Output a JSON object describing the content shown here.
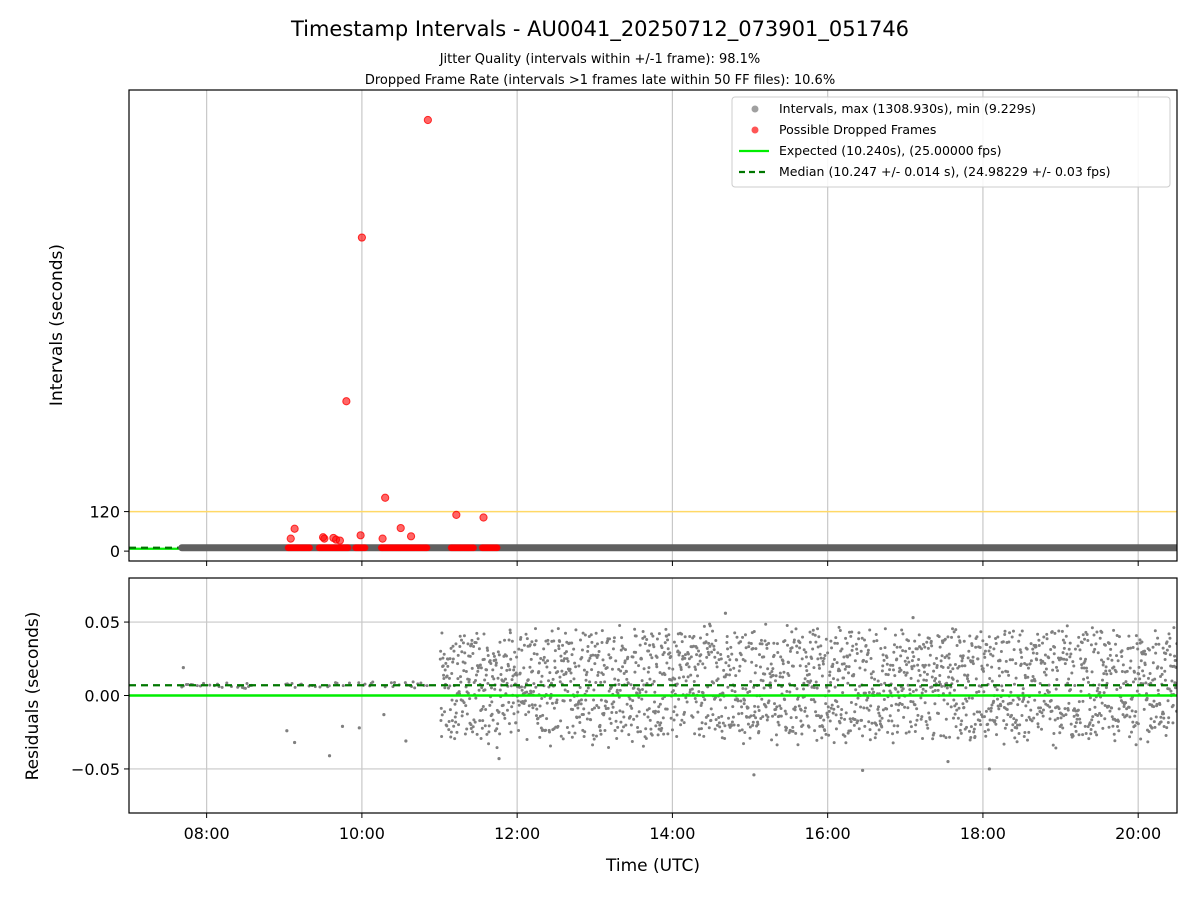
{
  "title": "Timestamp Intervals - AU0041_20250712_073901_051746",
  "subtitle_lines": [
    "Jitter Quality (intervals within +/-1 frame): 98.1%",
    "Dropped Frame Rate (intervals >1 frames late within 50 FF files): 10.6%"
  ],
  "colors": {
    "intervals": "#808080",
    "dropped": "#ff0000",
    "expected": "#00ee00",
    "median": "#007700",
    "threshold": "#ffd966",
    "grid": "#c8c8c8"
  },
  "chart_data": [
    {
      "type": "scatter",
      "name": "intervals-panel",
      "ylabel": "Intervals (seconds)",
      "xlim_hours": [
        7.0,
        20.5
      ],
      "ylim": [
        -30,
        1400
      ],
      "y_ticks": [
        {
          "value": 0,
          "label": "0"
        },
        {
          "value": 120,
          "label": "120"
        }
      ],
      "x_grid_hours": [
        8,
        10,
        12,
        14,
        16,
        18,
        20
      ],
      "grid": true,
      "legend_position": "upper-right",
      "legend": [
        {
          "kind": "dot",
          "color": "#a0a0a0",
          "label": "Intervals, max (1308.930s), min (9.229s)"
        },
        {
          "kind": "dot",
          "color": "#ff5555",
          "label": "Possible Dropped Frames"
        },
        {
          "kind": "line",
          "color": "#00ee00",
          "label": "Expected (10.240s), (25.00000 fps)"
        },
        {
          "kind": "dash",
          "color": "#007700",
          "label": "Median (10.247 +/- 0.014 s), (24.98229 +/- 0.03 fps)"
        }
      ],
      "reference_lines": {
        "expected": 10.24,
        "median": 10.247,
        "threshold": 120
      },
      "series": [
        {
          "name": "Intervals",
          "note": "continuous band of intervals near the expected value",
          "x_range_hours": [
            7.68,
            20.5
          ],
          "y": 10.25
        },
        {
          "name": "Possible Dropped Frames",
          "points": [
            {
              "x": "09:05",
              "y": 38
            },
            {
              "x": "09:08",
              "y": 68
            },
            {
              "x": "09:30",
              "y": 42
            },
            {
              "x": "09:31",
              "y": 38
            },
            {
              "x": "09:38",
              "y": 40
            },
            {
              "x": "09:40",
              "y": 35
            },
            {
              "x": "09:43",
              "y": 32
            },
            {
              "x": "09:48",
              "y": 455
            },
            {
              "x": "09:59",
              "y": 48
            },
            {
              "x": "10:00",
              "y": 952
            },
            {
              "x": "10:16",
              "y": 38
            },
            {
              "x": "10:18",
              "y": 162
            },
            {
              "x": "10:30",
              "y": 70
            },
            {
              "x": "10:38",
              "y": 45
            },
            {
              "x": "10:51",
              "y": 1308.93
            },
            {
              "x": "11:13",
              "y": 110
            },
            {
              "x": "11:34",
              "y": 102
            }
          ],
          "clusters_near_expected_hours": [
            [
              9.05,
              9.33
            ],
            [
              9.45,
              9.83
            ],
            [
              9.92,
              10.05
            ],
            [
              10.25,
              10.85
            ],
            [
              11.15,
              11.45
            ],
            [
              11.55,
              11.75
            ]
          ]
        }
      ]
    },
    {
      "type": "scatter",
      "name": "residuals-panel",
      "xlabel": "Time (UTC)",
      "ylabel": "Residuals (seconds)",
      "xlim_hours": [
        7.0,
        20.5
      ],
      "ylim": [
        -0.08,
        0.08
      ],
      "x_ticks": [
        "08:00",
        "10:00",
        "12:00",
        "14:00",
        "16:00",
        "18:00",
        "20:00"
      ],
      "y_ticks": [
        {
          "value": 0.05,
          "label": "0.05"
        },
        {
          "value": 0.0,
          "label": "0.00"
        },
        {
          "value": -0.05,
          "label": "−0.05"
        }
      ],
      "grid": true,
      "reference_lines": {
        "expected": 0.0,
        "median": 0.007
      },
      "series": [
        {
          "name": "Residuals",
          "note": "sparse points before 11:00 near +0.007 s; dense scatter from 11:00 to 20:30 spanning roughly -0.045 to +0.05 s",
          "early_range_hours": [
            7.68,
            10.85
          ],
          "early_center": 0.007,
          "dense_range_hours": [
            11.0,
            20.5
          ],
          "dense_center": 0.007,
          "dense_spread": 0.045,
          "outliers": [
            {
              "x": "07:42",
              "y": 0.019
            },
            {
              "x": "09:02",
              "y": -0.024
            },
            {
              "x": "09:08",
              "y": -0.032
            },
            {
              "x": "09:35",
              "y": -0.041
            },
            {
              "x": "09:45",
              "y": -0.021
            },
            {
              "x": "09:58",
              "y": -0.022
            },
            {
              "x": "10:17",
              "y": -0.013
            },
            {
              "x": "10:34",
              "y": -0.031
            },
            {
              "x": "11:46",
              "y": -0.043
            },
            {
              "x": "15:03",
              "y": -0.054
            },
            {
              "x": "16:27",
              "y": -0.051
            },
            {
              "x": "17:33",
              "y": -0.045
            },
            {
              "x": "18:05",
              "y": -0.05
            },
            {
              "x": "14:41",
              "y": 0.056
            },
            {
              "x": "17:06",
              "y": 0.053
            }
          ]
        }
      ]
    }
  ]
}
